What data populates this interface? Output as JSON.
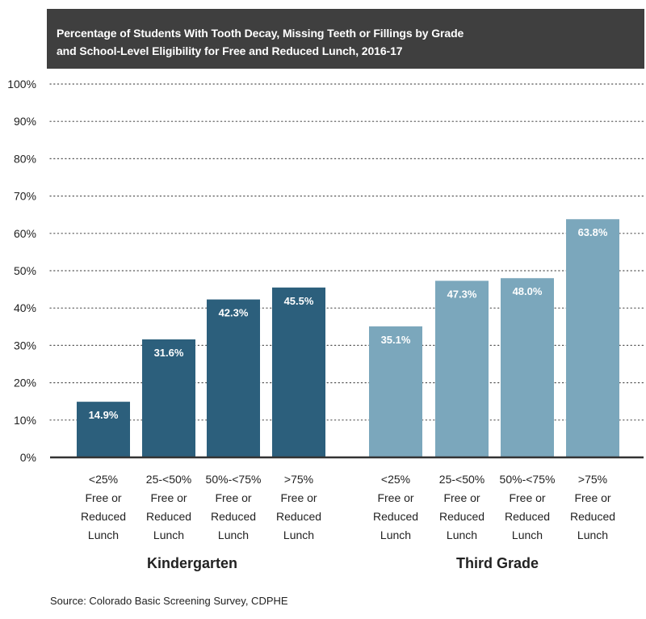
{
  "title": {
    "line1": "Percentage of Students With Tooth Decay, Missing Teeth or Fillings by Grade",
    "line2": "and School-Level Eligibility for Free and Reduced Lunch, 2016-17"
  },
  "source": "Source: Colorado Basic Screening Survey, CDPHE",
  "chart_data": {
    "type": "bar",
    "title": "Percentage of Students With Tooth Decay, Missing Teeth or Fillings by Grade and School-Level Eligibility for Free and Reduced Lunch, 2016-17",
    "ylim": [
      0,
      100
    ],
    "yticks": [
      "0%",
      "10%",
      "20%",
      "30%",
      "40%",
      "50%",
      "60%",
      "70%",
      "80%",
      "90%",
      "100%"
    ],
    "grid": true,
    "categories": [
      [
        "<25%",
        "Free or",
        "Reduced",
        "Lunch"
      ],
      [
        "25-<50%",
        "Free or",
        "Reduced",
        "Lunch"
      ],
      [
        "50%-<75%",
        "Free or",
        "Reduced",
        "Lunch"
      ],
      [
        ">75%",
        "Free or",
        "Reduced",
        "Lunch"
      ]
    ],
    "groups": [
      {
        "name": "Kindergarten",
        "color": "#2c5f7c",
        "values": [
          14.9,
          31.6,
          42.3,
          45.5
        ],
        "labels": [
          "14.9%",
          "31.6%",
          "42.3%",
          "45.5%"
        ]
      },
      {
        "name": "Third Grade",
        "color": "#7ba7bc",
        "values": [
          35.1,
          47.3,
          48.0,
          63.8
        ],
        "labels": [
          "35.1%",
          "47.3%",
          "48.0%",
          "63.8%"
        ]
      }
    ]
  }
}
